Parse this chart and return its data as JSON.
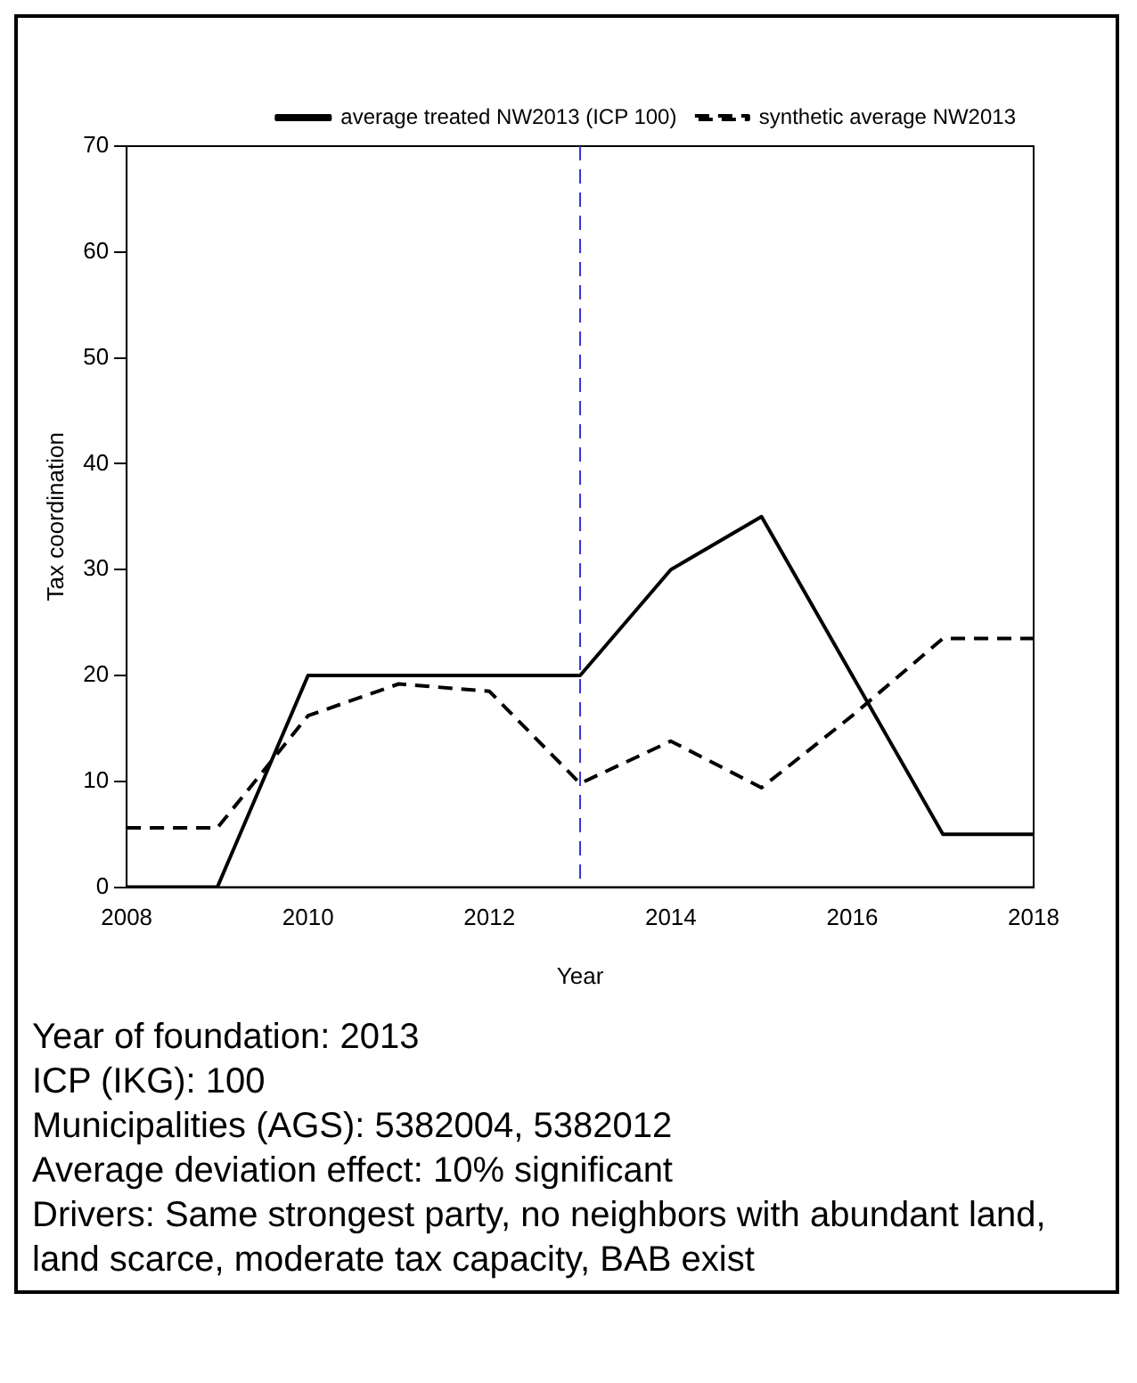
{
  "chart_data": {
    "type": "line",
    "xlabel": "Year",
    "ylabel": "Tax coordination",
    "x": [
      2008,
      2009,
      2010,
      2011,
      2012,
      2013,
      2014,
      2015,
      2016,
      2017,
      2018
    ],
    "series": [
      {
        "name": "average treated NW2013 (ICP 100)",
        "color": "#000000",
        "line_style": "solid",
        "values": [
          0,
          0,
          20,
          20,
          20,
          20,
          30,
          35,
          20,
          5,
          5
        ]
      },
      {
        "name": "synthetic average NW2013",
        "color": "#000000",
        "line_style": "dashed",
        "values": [
          5.6,
          5.6,
          16.2,
          19.2,
          18.5,
          9.8,
          13.8,
          9.4,
          16.2,
          23.5,
          23.5
        ]
      }
    ],
    "xlim": [
      2008,
      2018
    ],
    "xticks": [
      2008,
      2010,
      2012,
      2014,
      2016,
      2018
    ],
    "ylim": [
      0,
      70
    ],
    "yticks": [
      0,
      10,
      20,
      30,
      40,
      50,
      60,
      70
    ],
    "ref_lines": [
      {
        "axis": "x",
        "value": 2013,
        "color": "#3333cc",
        "line_style": "dashed"
      }
    ],
    "legend": "top right",
    "grid": false,
    "marker": "none",
    "annotations": [
      "Year of foundation: 2013",
      "ICP (IKG): 100",
      "Municipalities (AGS): 5382004, 5382012",
      "Average deviation effect: 10% significant",
      "Drivers: Same strongest party, no neighbors with abundant land, land scarce, moderate tax capacity, BAB exist"
    ]
  }
}
